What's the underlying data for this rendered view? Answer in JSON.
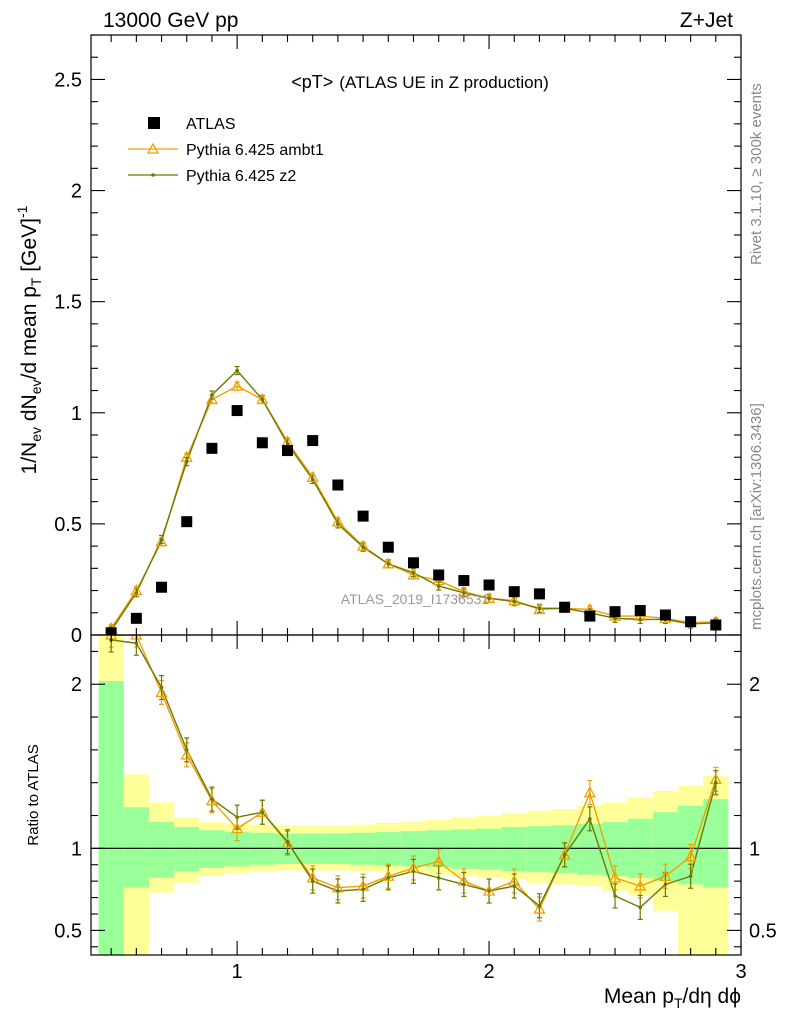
{
  "header": {
    "left": "13000 GeV pp",
    "right": "Z+Jet"
  },
  "side_texts": {
    "rivet": "Rivet 3.1.10, ≥ 300k events",
    "mcplots": "mcplots.cern.ch [arXiv:1306.3436]"
  },
  "watermark": "ATLAS_2019_I1736531",
  "colors": {
    "atlas": "#000000",
    "ambt1": "#f0a000",
    "z2": "#6a7a00",
    "band_inner": "#99ff99",
    "band_outer": "#ffff99"
  },
  "chart_data": [
    {
      "type": "scatter",
      "title": "<pT>",
      "subtitle": "(ATLAS UE in Z production)",
      "ylabel": "1/N_ev dN_ev/d mean p_T [GeV]^-1",
      "xlabel": "Mean p_T/dη dϕ",
      "xlim": [
        0.42,
        3.0
      ],
      "ylim": [
        0,
        2.7
      ],
      "yticks": [
        0,
        0.5,
        1,
        1.5,
        2,
        2.5
      ],
      "ytick_labels": [
        "0",
        "0.5",
        "1",
        "1.5",
        "2",
        "2.5"
      ],
      "legend_placement": "top-left",
      "x": [
        0.5,
        0.6,
        0.7,
        0.8,
        0.9,
        1.0,
        1.1,
        1.2,
        1.3,
        1.4,
        1.5,
        1.6,
        1.7,
        1.8,
        1.9,
        2.0,
        2.1,
        2.2,
        2.3,
        2.4,
        2.5,
        2.6,
        2.7,
        2.8,
        2.9
      ],
      "series": [
        {
          "name": "ATLAS",
          "marker": "square",
          "values": [
            0.01,
            0.075,
            0.215,
            0.51,
            0.84,
            1.01,
            0.865,
            0.83,
            0.875,
            0.675,
            0.535,
            0.395,
            0.325,
            0.27,
            0.245,
            0.225,
            0.195,
            0.185,
            0.125,
            0.085,
            0.105,
            0.11,
            0.09,
            0.06,
            0.045
          ]
        },
        {
          "name": "Pythia 6.425 ambt1",
          "marker": "triangle",
          "values": [
            0.03,
            0.2,
            0.42,
            0.8,
            1.06,
            1.12,
            1.06,
            0.87,
            0.71,
            0.51,
            0.4,
            0.32,
            0.27,
            0.245,
            0.195,
            0.165,
            0.155,
            0.115,
            0.12,
            0.115,
            0.085,
            0.085,
            0.075,
            0.055,
            0.06
          ]
        },
        {
          "name": "Pythia 6.425 z2",
          "marker": "dot",
          "values": [
            0.02,
            0.19,
            0.43,
            0.78,
            1.08,
            1.19,
            1.06,
            0.86,
            0.7,
            0.5,
            0.395,
            0.32,
            0.28,
            0.22,
            0.19,
            0.165,
            0.15,
            0.12,
            0.12,
            0.1,
            0.075,
            0.07,
            0.07,
            0.05,
            0.055
          ]
        }
      ]
    },
    {
      "type": "line",
      "ylabel": "Ratio to ATLAS",
      "xlabel": "Mean p_T/dη dϕ",
      "xlim": [
        0.42,
        3.0
      ],
      "ylim": [
        0.35,
        2.3
      ],
      "xticks": [
        1,
        2,
        3
      ],
      "xtick_labels": [
        "1",
        "2",
        "3"
      ],
      "yticks": [
        0.5,
        1,
        2
      ],
      "ytick_labels": [
        "0.5",
        "1",
        "2"
      ],
      "x": [
        0.5,
        0.6,
        0.7,
        0.8,
        0.9,
        1.0,
        1.1,
        1.2,
        1.3,
        1.4,
        1.5,
        1.6,
        1.7,
        1.8,
        1.9,
        2.0,
        2.1,
        2.2,
        2.3,
        2.4,
        2.5,
        2.6,
        2.7,
        2.8,
        2.9
      ],
      "bands": {
        "inner_lo": [
          0.35,
          0.76,
          0.82,
          0.86,
          0.88,
          0.89,
          0.9,
          0.905,
          0.905,
          0.905,
          0.9,
          0.895,
          0.89,
          0.885,
          0.875,
          0.87,
          0.86,
          0.855,
          0.85,
          0.84,
          0.83,
          0.82,
          0.8,
          0.78,
          0.76
        ],
        "inner_hi": [
          2.02,
          1.25,
          1.16,
          1.13,
          1.11,
          1.1,
          1.095,
          1.09,
          1.09,
          1.09,
          1.095,
          1.1,
          1.105,
          1.11,
          1.115,
          1.12,
          1.13,
          1.135,
          1.14,
          1.15,
          1.16,
          1.18,
          1.22,
          1.26,
          1.3
        ],
        "outer_lo": [
          0.35,
          0.35,
          0.73,
          0.79,
          0.83,
          0.85,
          0.86,
          0.865,
          0.865,
          0.865,
          0.86,
          0.855,
          0.85,
          0.84,
          0.83,
          0.82,
          0.81,
          0.79,
          0.78,
          0.77,
          0.74,
          0.71,
          0.62,
          0.35,
          0.35
        ],
        "outer_hi": [
          2.3,
          1.45,
          1.28,
          1.19,
          1.16,
          1.15,
          1.145,
          1.14,
          1.14,
          1.14,
          1.145,
          1.155,
          1.165,
          1.175,
          1.19,
          1.2,
          1.215,
          1.23,
          1.24,
          1.26,
          1.28,
          1.31,
          1.35,
          1.38,
          1.44
        ]
      },
      "series": [
        {
          "name": "Pythia 6.425 ambt1",
          "values": [
            2.3,
            2.3,
            1.95,
            1.57,
            1.29,
            1.12,
            1.22,
            1.03,
            0.82,
            0.76,
            0.77,
            0.83,
            0.88,
            0.92,
            0.8,
            0.74,
            0.8,
            0.63,
            0.96,
            1.34,
            0.82,
            0.77,
            0.83,
            0.95,
            1.42
          ]
        },
        {
          "name": "Pythia 6.425 z2",
          "values": [
            2.27,
            2.25,
            1.98,
            1.6,
            1.3,
            1.19,
            1.22,
            1.04,
            0.8,
            0.74,
            0.75,
            0.82,
            0.86,
            0.82,
            0.78,
            0.74,
            0.77,
            0.65,
            0.96,
            1.18,
            0.71,
            0.64,
            0.78,
            0.83,
            1.4
          ]
        }
      ]
    }
  ]
}
